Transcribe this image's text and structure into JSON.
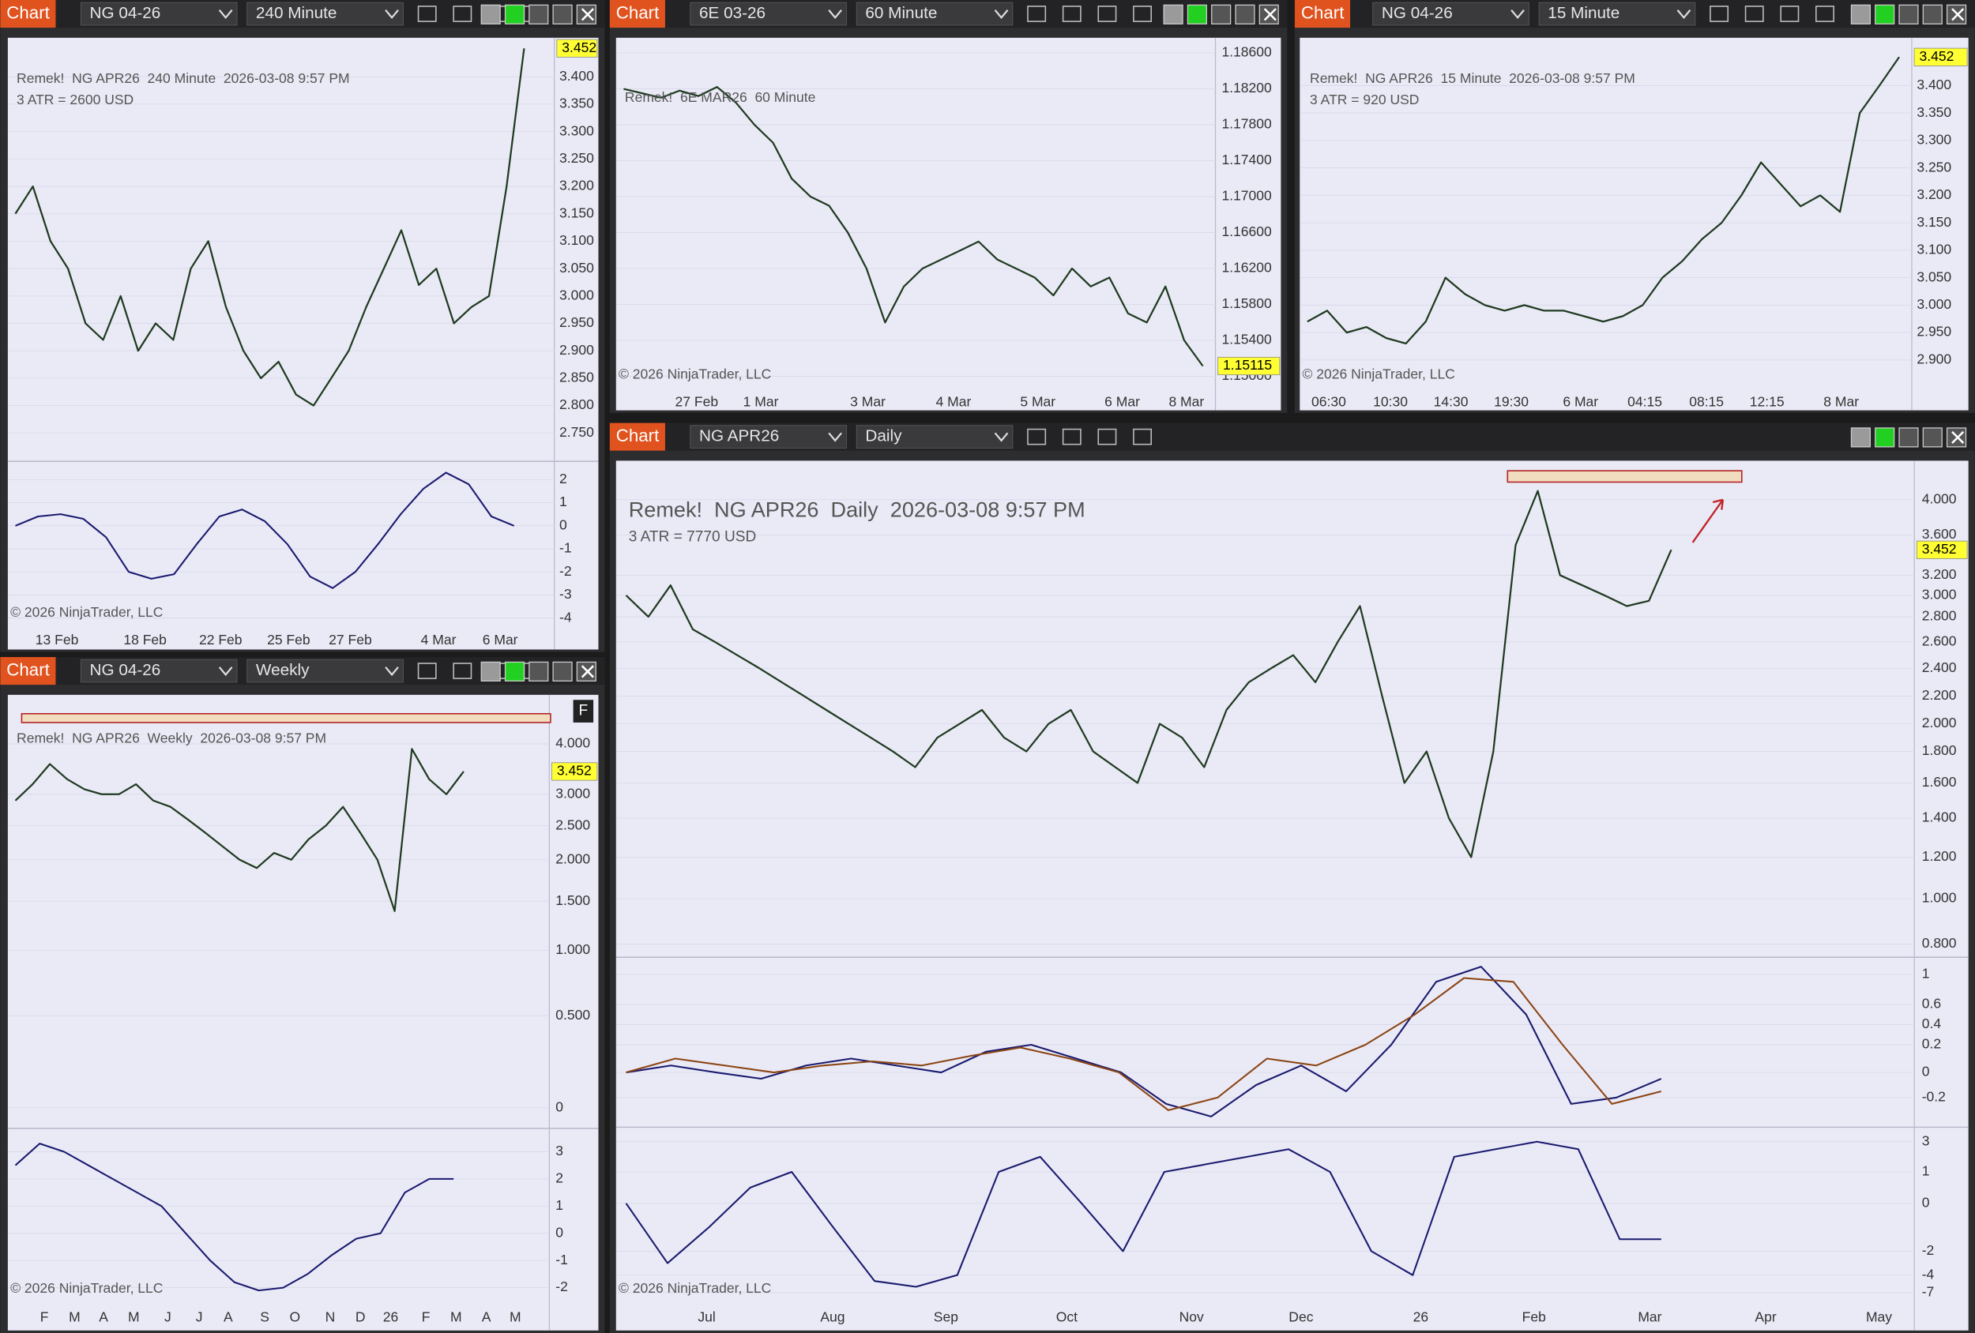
{
  "windows": [
    {
      "tab": "Chart",
      "instrument": "NG 04-26",
      "interval": "240 Minute",
      "info": "Remek!  NG APR26  240 Minute  2026-03-08 9:57 PM",
      "atr": "3 ATR = 2600 USD",
      "copyright": "© 2026 NinjaTrader, LLC",
      "x_labels": [
        "13 Feb",
        "18 Feb",
        "22 Feb",
        "25 Feb",
        "27 Feb",
        "4 Mar",
        "6 Mar"
      ],
      "yticks": [
        {
          "value": 3.4,
          "label": "3.400"
        },
        {
          "value": 3.35,
          "label": "3.350"
        },
        {
          "value": 3.3,
          "label": "3.300"
        },
        {
          "value": 3.25,
          "label": "3.250"
        },
        {
          "value": 3.2,
          "label": "3.200"
        },
        {
          "value": 3.15,
          "label": "3.150"
        },
        {
          "value": 3.1,
          "label": "3.100"
        },
        {
          "value": 3.05,
          "label": "3.050"
        },
        {
          "value": 3.0,
          "label": "3.000"
        },
        {
          "value": 2.95,
          "label": "2.950"
        },
        {
          "value": 2.9,
          "label": "2.900"
        },
        {
          "value": 2.85,
          "label": "2.850"
        },
        {
          "value": 2.8,
          "label": "2.800"
        },
        {
          "value": 2.75,
          "label": "2.750"
        }
      ],
      "last_price": {
        "value": 3.452,
        "label": "3.452"
      },
      "close_color": "#1f3a1f",
      "close": [
        3.15,
        3.2,
        3.1,
        3.05,
        2.95,
        2.92,
        3.0,
        2.9,
        2.95,
        2.92,
        3.05,
        3.1,
        2.98,
        2.9,
        2.85,
        2.88,
        2.82,
        2.8,
        2.85,
        2.9,
        2.98,
        3.05,
        3.12,
        3.02,
        3.05,
        2.95,
        2.98,
        3.0,
        3.2,
        3.452
      ],
      "oscillators": [
        {
          "yticks": [
            2,
            1,
            0,
            -1,
            -2,
            -3,
            -4
          ],
          "series": [
            {
              "color": "#1a1a6e",
              "values": [
                0,
                0.4,
                0.5,
                0.3,
                -0.5,
                -2.0,
                -2.3,
                -2.1,
                -0.8,
                0.4,
                0.7,
                0.2,
                -0.8,
                -2.2,
                -2.7,
                -2.0,
                -0.8,
                0.5,
                1.6,
                2.3,
                1.8,
                0.4,
                0
              ]
            }
          ]
        }
      ]
    },
    {
      "tab": "Chart",
      "instrument": "6E 03-26",
      "interval": "60 Minute",
      "info": "Remek!  6E MAR26  60 Minute",
      "copyright": "© 2026 NinjaTrader, LLC",
      "x_labels": [
        "27 Feb",
        "1 Mar",
        "3 Mar",
        "4 Mar",
        "5 Mar",
        "6 Mar",
        "8 Mar"
      ],
      "yticks": [
        {
          "value": 1.186,
          "label": "1.18600"
        },
        {
          "value": 1.182,
          "label": "1.18200"
        },
        {
          "value": 1.178,
          "label": "1.17800"
        },
        {
          "value": 1.174,
          "label": "1.17400"
        },
        {
          "value": 1.17,
          "label": "1.17000"
        },
        {
          "value": 1.166,
          "label": "1.16600"
        },
        {
          "value": 1.162,
          "label": "1.16200"
        },
        {
          "value": 1.158,
          "label": "1.15800"
        },
        {
          "value": 1.154,
          "label": "1.15400"
        },
        {
          "value": 1.15,
          "label": "1.15000"
        }
      ],
      "last_price": 1.15115,
      "close_color": "#1f3a1f",
      "close": [
        1.182,
        1.1815,
        1.181,
        1.1818,
        1.1812,
        1.1822,
        1.1805,
        1.178,
        1.176,
        1.172,
        1.17,
        1.169,
        1.166,
        1.162,
        1.156,
        1.16,
        1.162,
        1.163,
        1.164,
        1.165,
        1.163,
        1.162,
        1.161,
        1.159,
        1.162,
        1.16,
        1.161,
        1.157,
        1.156,
        1.16,
        1.154,
        1.15115
      ],
      "oscillators": []
    },
    {
      "tab": "Chart",
      "instrument": "NG 04-26",
      "interval": "15 Minute",
      "info": "Remek!  NG APR26  15 Minute  2026-03-08 9:57 PM",
      "atr": "3 ATR = 920 USD",
      "copyright": "© 2026 NinjaTrader, LLC",
      "x_labels": [
        "06:30",
        "10:30",
        "14:30",
        "19:30",
        "6 Mar",
        "04:15",
        "08:15",
        "12:15",
        "8 Mar"
      ],
      "yticks": [
        {
          "value": 3.4,
          "label": "3.400"
        },
        {
          "value": 3.35,
          "label": "3.350"
        },
        {
          "value": 3.3,
          "label": "3.300"
        },
        {
          "value": 3.25,
          "label": "3.250"
        },
        {
          "value": 3.2,
          "label": "3.200"
        },
        {
          "value": 3.15,
          "label": "3.150"
        },
        {
          "value": 3.1,
          "label": "3.100"
        },
        {
          "value": 3.05,
          "label": "3.050"
        },
        {
          "value": 3.0,
          "label": "3.000"
        },
        {
          "value": 2.95,
          "label": "2.950"
        },
        {
          "value": 2.9,
          "label": "2.900"
        }
      ],
      "last_price": {
        "value": 3.452,
        "label": "3.452"
      },
      "close_color": "#1f3a1f",
      "close": [
        2.97,
        2.99,
        2.95,
        2.96,
        2.94,
        2.93,
        2.97,
        3.05,
        3.02,
        3.0,
        2.99,
        3.0,
        2.99,
        2.99,
        2.98,
        2.97,
        2.98,
        3.0,
        3.05,
        3.08,
        3.12,
        3.15,
        3.2,
        3.26,
        3.22,
        3.18,
        3.2,
        3.17,
        3.35,
        3.4,
        3.452
      ],
      "oscillators": []
    },
    {
      "tab": "Chart",
      "instrument": "NG 04-26",
      "interval": "Weekly",
      "info": "Remek!  NG APR26  Weekly  2026-03-08 9:57 PM",
      "badge": "F",
      "copyright": "© 2026 NinjaTrader, LLC",
      "x_labels": [
        "F",
        "M",
        "A",
        "M",
        "J",
        "J",
        "A",
        "S",
        "O",
        "N",
        "D",
        "26",
        "F",
        "M",
        "A",
        "M"
      ],
      "yticks": [
        {
          "value": 4.0,
          "label": "4.000"
        },
        {
          "value": 3.0,
          "label": "3.000"
        },
        {
          "value": 2.5,
          "label": "2.500"
        },
        {
          "value": 2.0,
          "label": "2.000"
        },
        {
          "value": 1.5,
          "label": "1.500"
        },
        {
          "value": 1.0,
          "label": "1.000"
        },
        {
          "value": 0.5,
          "label": "0.500"
        },
        0
      ],
      "last_price": {
        "value": 3.452,
        "label": "3.452"
      },
      "close_color": "#1f3a1f",
      "close": [
        2.9,
        3.2,
        3.6,
        3.3,
        3.1,
        3.0,
        3.0,
        3.2,
        2.9,
        2.8,
        2.6,
        2.4,
        2.2,
        2.0,
        1.9,
        2.1,
        2.0,
        2.3,
        2.5,
        2.8,
        2.4,
        2.0,
        1.4,
        3.9,
        3.3,
        3.0,
        3.452
      ],
      "oscillators": [
        {
          "yticks": [
            3,
            2,
            1,
            0,
            -1,
            -2
          ],
          "series": [
            {
              "color": "#1a1a6e",
              "values": [
                2.5,
                3.3,
                3,
                2.5,
                2,
                1.5,
                1,
                0,
                -1,
                -1.8,
                -2.1,
                -2.0,
                -1.5,
                -0.8,
                -0.2,
                0,
                1.5,
                2,
                2
              ]
            }
          ]
        }
      ]
    },
    {
      "tab": "Chart",
      "instrument": "NG APR26",
      "interval": "Daily",
      "info": "Remek!  NG APR26  Daily  2026-03-08 9:57 PM",
      "atr": "3 ATR = 7770 USD",
      "copyright": "© 2026 NinjaTrader, LLC",
      "x_labels": [
        "Jul",
        "Aug",
        "Sep",
        "Oct",
        "Nov",
        "Dec",
        "26",
        "Feb",
        "Mar",
        "Apr",
        "May"
      ],
      "yticks": [
        {
          "value": 4.0,
          "label": "4.000"
        },
        {
          "value": 3.6,
          "label": "3.600"
        },
        {
          "value": 3.2,
          "label": "3.200"
        },
        {
          "value": 3.0,
          "label": "3.000"
        },
        {
          "value": 2.8,
          "label": "2.800"
        },
        {
          "value": 2.6,
          "label": "2.600"
        },
        {
          "value": 2.4,
          "label": "2.400"
        },
        {
          "value": 2.2,
          "label": "2.200"
        },
        {
          "value": 2.0,
          "label": "2.000"
        },
        {
          "value": 1.8,
          "label": "1.800"
        },
        {
          "value": 1.6,
          "label": "1.600"
        },
        {
          "value": 1.4,
          "label": "1.400"
        },
        {
          "value": 1.2,
          "label": "1.200"
        },
        {
          "value": 1.0,
          "label": "1.000"
        },
        {
          "value": 0.8,
          "label": "0.800"
        }
      ],
      "last_price": {
        "value": 3.452,
        "label": "3.452"
      },
      "close_color": "#1f3a1f",
      "close": [
        3.0,
        2.8,
        3.1,
        2.7,
        2.6,
        2.5,
        2.4,
        2.3,
        2.2,
        2.1,
        2.0,
        1.9,
        1.8,
        1.7,
        1.9,
        2.0,
        2.1,
        1.9,
        1.8,
        2.0,
        2.1,
        1.8,
        1.7,
        1.6,
        2.0,
        1.9,
        1.7,
        2.1,
        2.3,
        2.4,
        2.5,
        2.3,
        2.6,
        2.9,
        2.2,
        1.6,
        1.8,
        1.4,
        1.2,
        1.8,
        3.5,
        4.1,
        3.2,
        3.1,
        3.0,
        2.9,
        2.95,
        3.452
      ],
      "oscillators": [
        {
          "yticks": [
            1,
            0.6,
            0.4,
            0.2,
            0,
            -0.2
          ],
          "series": [
            {
              "color": "#1a1a6e",
              "values": [
                0,
                0.05,
                0,
                -0.05,
                0.05,
                0.1,
                0.05,
                0,
                0.15,
                0.2,
                0.1,
                0,
                -0.25,
                -0.35,
                -0.1,
                0.05,
                -0.15,
                0.2,
                0.9,
                1.1,
                0.5,
                -0.25,
                -0.2,
                -0.05
              ]
            },
            {
              "color": "#8b4513",
              "values": [
                0,
                0.1,
                0.05,
                0,
                0.05,
                0.08,
                0.05,
                0.12,
                0.18,
                0.1,
                0,
                -0.3,
                -0.2,
                0.1,
                0.05,
                0.2,
                0.5,
                0.95,
                0.9,
                0.2,
                -0.25,
                -0.15
              ]
            }
          ]
        },
        {
          "yticks": [
            3,
            1,
            0,
            -2,
            -4,
            -7
          ],
          "series": [
            {
              "color": "#1a1a6e",
              "values": [
                0,
                -3,
                -1,
                0.5,
                1,
                -1,
                -5,
                -6,
                -4,
                1,
                2,
                0,
                -2,
                1,
                1.5,
                2,
                2.5,
                1,
                -2,
                -4,
                2,
                2.5,
                3,
                2.5,
                -1.5,
                -1.5
              ]
            }
          ]
        }
      ]
    }
  ]
}
